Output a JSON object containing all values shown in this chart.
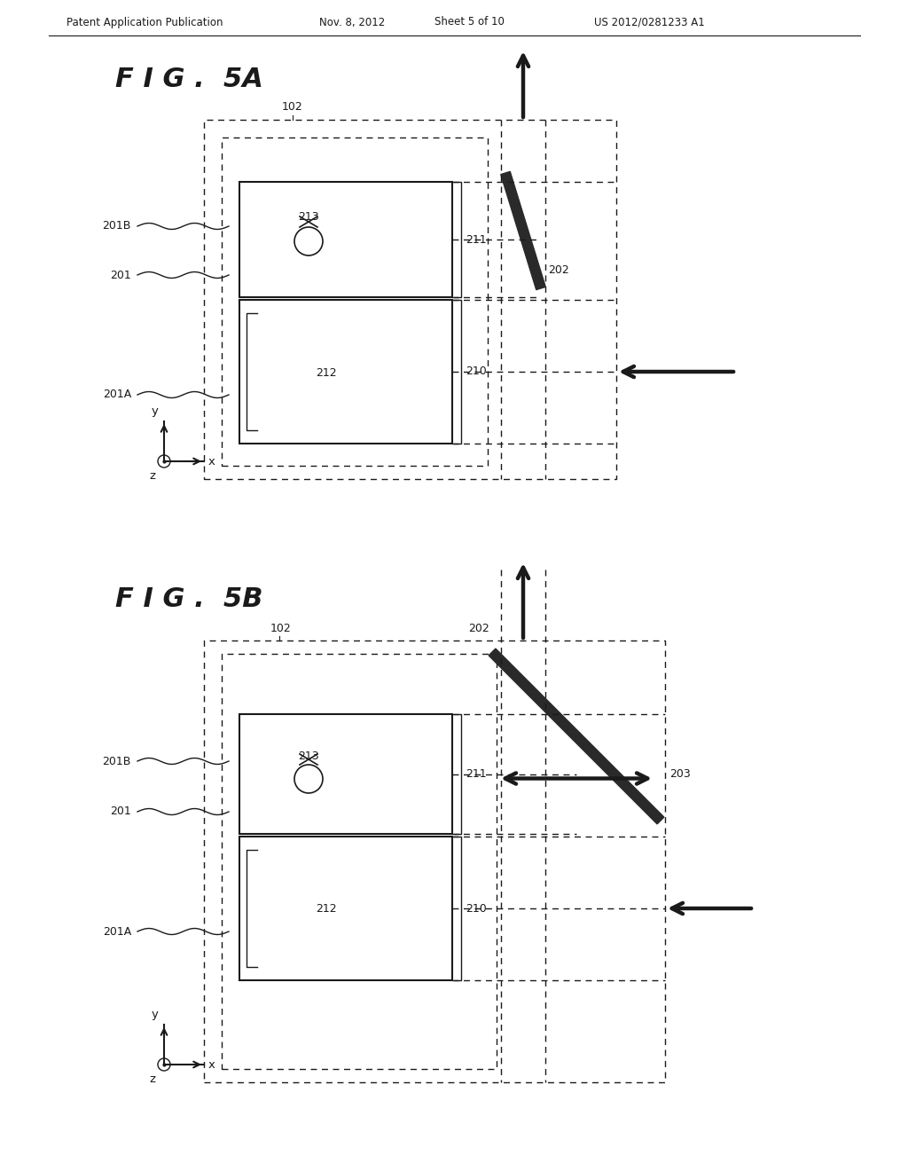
{
  "bg_color": "#ffffff",
  "line_color": "#1a1a1a",
  "header_text": "Patent Application Publication",
  "header_date": "Nov. 8, 2012",
  "header_sheet": "Sheet 5 of 10",
  "header_patent": "US 2012/0281233 A1",
  "fig5a_title": "F I G .  5A",
  "fig5b_title": "F I G .  5B",
  "label_102": "102",
  "label_201": "201",
  "label_201A": "201A",
  "label_201B": "201B",
  "label_210": "210",
  "label_211": "211",
  "label_212": "212",
  "label_213": "213",
  "label_202": "202",
  "label_203": "203"
}
